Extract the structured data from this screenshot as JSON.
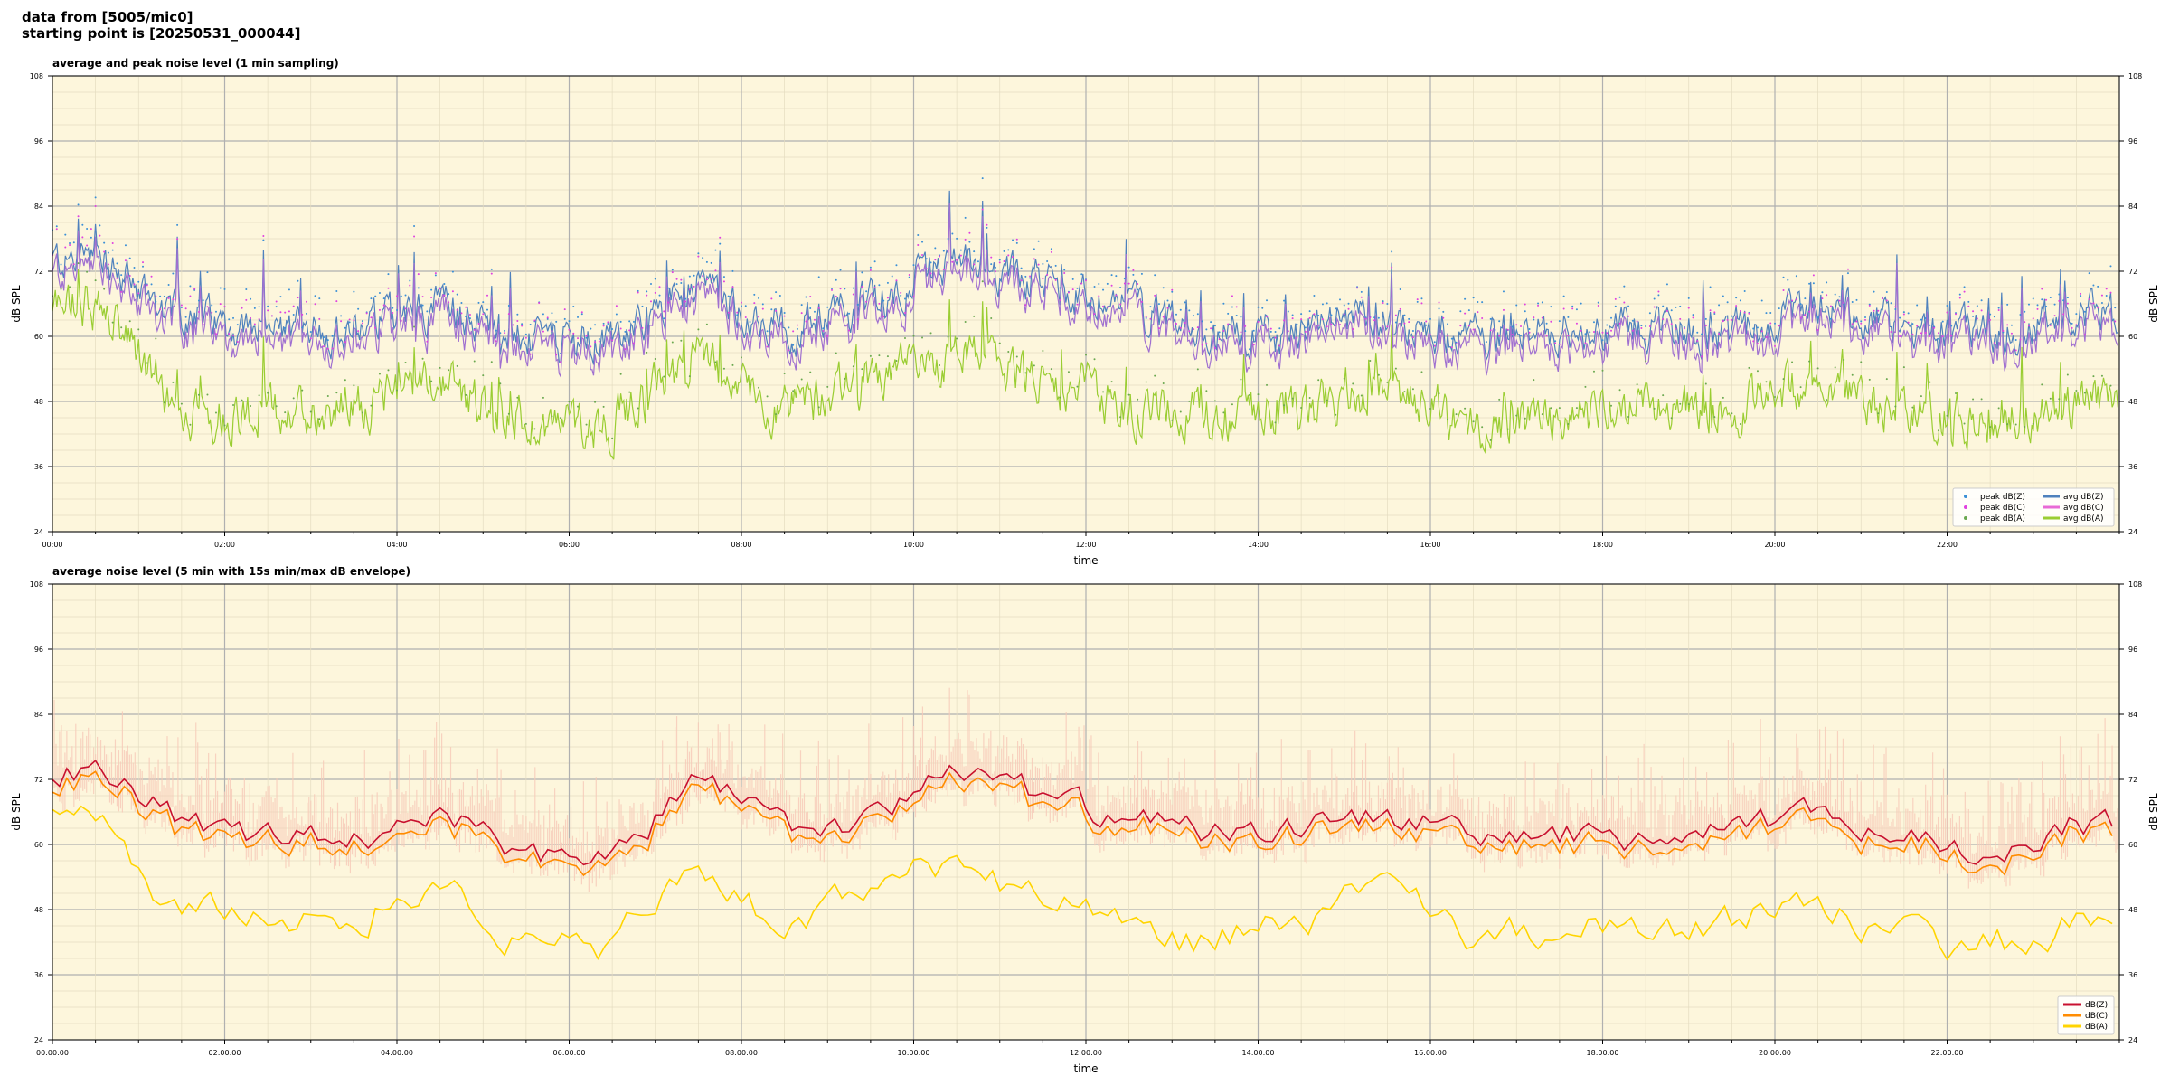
{
  "header": {
    "line1": "data from [5005/mic0]",
    "line2": "starting point is [20250531_000044]"
  },
  "colors": {
    "plot_bg": "#fdf6dc",
    "z_peak": "#3a8fd6",
    "c_peak": "#e040e0",
    "a_peak": "#6aa84f",
    "z_avg": "#4f81bd",
    "c_avg": "#e86ad6",
    "a_avg": "#9acd32",
    "purple_overlap": "#a070d0",
    "z5": "#c8102e",
    "c5": "#ff8c00",
    "a5": "#ffd400",
    "envelope": "#f6c9b8"
  },
  "chart_data": [
    {
      "type": "line",
      "title": "average and peak noise level (1 min sampling)",
      "xlabel": "time",
      "ylabel": "dB SPL",
      "xlim": [
        0,
        24
      ],
      "ylim": [
        24,
        108
      ],
      "yticks": [
        "24",
        "36",
        "48",
        "60",
        "72",
        "84",
        "96",
        "108"
      ],
      "xticks": [
        "00:00",
        "02:00",
        "04:00",
        "06:00",
        "08:00",
        "10:00",
        "12:00",
        "14:00",
        "16:00",
        "18:00",
        "20:00",
        "22:00"
      ],
      "grid": true,
      "legend_position": "bottom-right",
      "legend": [
        "peak dB(Z)",
        "peak dB(C)",
        "peak dB(A)",
        "avg dB(Z)",
        "avg dB(C)",
        "avg dB(A)"
      ],
      "series_profile": {
        "avg_dBZ_hourly": [
          74,
          64,
          60,
          62,
          66,
          59,
          59,
          70,
          61,
          66,
          74,
          70,
          65,
          60,
          61,
          64,
          60,
          61,
          62,
          60,
          66,
          61,
          60,
          64
        ],
        "avg_dBA_hourly": [
          66,
          46,
          46,
          47,
          52,
          44,
          44,
          56,
          46,
          52,
          56,
          52,
          47,
          45,
          46,
          50,
          43,
          46,
          47,
          47,
          52,
          46,
          44,
          48
        ]
      }
    },
    {
      "type": "line",
      "title": "average noise level (5 min with 15s min/max dB envelope)",
      "xlabel": "time",
      "ylabel": "dB SPL",
      "xlim": [
        0,
        24
      ],
      "ylim": [
        24,
        108
      ],
      "yticks": [
        "24",
        "36",
        "48",
        "60",
        "72",
        "84",
        "96",
        "108"
      ],
      "xticks": [
        "00:00:00",
        "02:00:00",
        "04:00:00",
        "06:00:00",
        "08:00:00",
        "10:00:00",
        "12:00:00",
        "14:00:00",
        "16:00:00",
        "18:00:00",
        "20:00:00",
        "22:00:00"
      ],
      "grid": true,
      "legend_position": "bottom-right",
      "legend": [
        "dB(Z)",
        "dB(C)",
        "dB(A)"
      ],
      "series_profile": {
        "dBZ_hourly": [
          74,
          64,
          61,
          61,
          66,
          58,
          58,
          72,
          63,
          64,
          74,
          69,
          64,
          62,
          63,
          66,
          61,
          62,
          61,
          62,
          66,
          61,
          59,
          64
        ],
        "dBA_hourly": [
          65,
          47,
          47,
          46,
          54,
          41,
          41,
          56,
          44,
          52,
          58,
          49,
          44,
          42,
          46,
          52,
          41,
          45,
          44,
          46,
          48,
          43,
          41,
          46
        ]
      }
    }
  ]
}
